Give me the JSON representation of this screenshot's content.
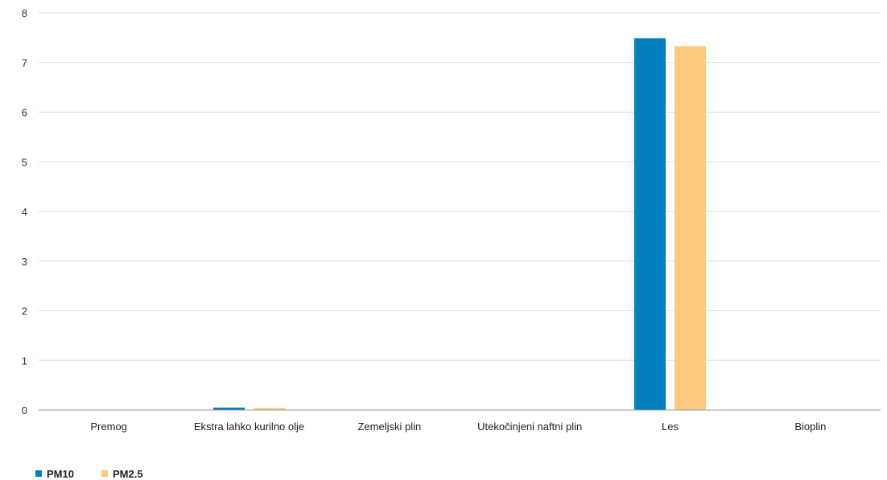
{
  "chart_data": {
    "type": "bar",
    "categories": [
      "Premog",
      "Ekstra lahko kurilno olje",
      "Zemeljski plin",
      "Utekočinjeni naftni plin",
      "Les",
      "Bioplin"
    ],
    "series": [
      {
        "name": "PM10",
        "color": "#0080bd",
        "values": [
          0,
          0.05,
          0,
          0,
          7.49,
          0
        ]
      },
      {
        "name": "PM2.5",
        "color": "#fcc97e",
        "values": [
          0,
          0.04,
          0,
          0,
          7.33,
          0
        ]
      }
    ],
    "title": "",
    "xlabel": "",
    "ylabel": "",
    "ylim": [
      0,
      8
    ],
    "yticks": [
      0,
      1,
      2,
      3,
      4,
      5,
      6,
      7,
      8
    ],
    "grid": true,
    "legend": "bottom-left"
  }
}
